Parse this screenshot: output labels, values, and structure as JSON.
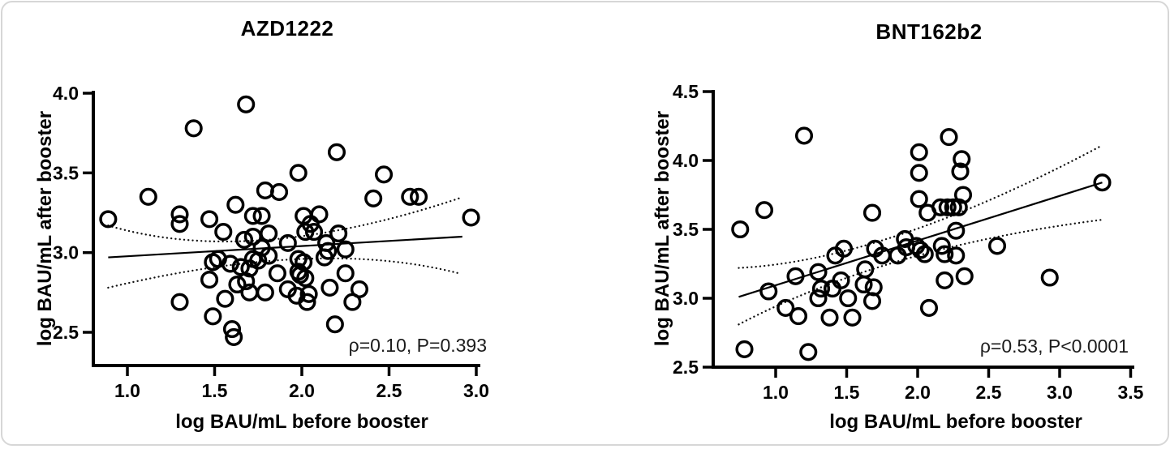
{
  "chart_data": [
    {
      "type": "scatter",
      "title": "AZD1222",
      "xlabel": "log BAU/mL before booster",
      "ylabel": "log BAU/mL after booster",
      "annotation": "ρ=0.10, P=0.393",
      "xticks": [
        1.0,
        1.5,
        2.0,
        2.5,
        3.0
      ],
      "yticks": [
        2.5,
        3.0,
        3.5,
        4.0
      ],
      "xlim": [
        0.8,
        3.02
      ],
      "ylim": [
        2.29,
        4.02
      ],
      "grid": false,
      "legend": "none",
      "marker": "open-circle",
      "marker_color": "#000000",
      "regression_line": {
        "x1": 0.89,
        "y1": 2.97,
        "x2": 2.92,
        "y2": 3.1
      },
      "ci_upper": [
        [
          0.89,
          3.17
        ],
        [
          1.8,
          3.08
        ],
        [
          2.9,
          3.34
        ]
      ],
      "ci_lower": [
        [
          0.89,
          2.78
        ],
        [
          2.0,
          2.96
        ],
        [
          2.9,
          2.87
        ]
      ],
      "points": [
        [
          1.68,
          3.93
        ],
        [
          1.38,
          3.78
        ],
        [
          2.2,
          3.63
        ],
        [
          1.98,
          3.5
        ],
        [
          2.47,
          3.49
        ],
        [
          1.79,
          3.39
        ],
        [
          1.87,
          3.38
        ],
        [
          1.12,
          3.35
        ],
        [
          2.41,
          3.34
        ],
        [
          2.62,
          3.35
        ],
        [
          2.67,
          3.35
        ],
        [
          1.62,
          3.3
        ],
        [
          1.3,
          3.24
        ],
        [
          1.3,
          3.18
        ],
        [
          1.47,
          3.21
        ],
        [
          1.72,
          3.23
        ],
        [
          1.77,
          3.23
        ],
        [
          2.01,
          3.23
        ],
        [
          2.1,
          3.24
        ],
        [
          2.05,
          3.18
        ],
        [
          0.89,
          3.21
        ],
        [
          2.97,
          3.22
        ],
        [
          2.21,
          3.12
        ],
        [
          2.02,
          3.13
        ],
        [
          2.07,
          3.13
        ],
        [
          1.55,
          3.13
        ],
        [
          1.67,
          3.08
        ],
        [
          1.72,
          3.1
        ],
        [
          1.81,
          3.12
        ],
        [
          1.77,
          3.03
        ],
        [
          1.92,
          3.06
        ],
        [
          2.14,
          3.06
        ],
        [
          2.15,
          3.01
        ],
        [
          2.25,
          3.02
        ],
        [
          1.81,
          2.98
        ],
        [
          1.49,
          2.94
        ],
        [
          1.52,
          2.96
        ],
        [
          1.59,
          2.93
        ],
        [
          1.72,
          2.96
        ],
        [
          1.75,
          2.95
        ],
        [
          1.65,
          2.91
        ],
        [
          1.7,
          2.9
        ],
        [
          2.13,
          2.97
        ],
        [
          1.98,
          2.96
        ],
        [
          2.01,
          2.94
        ],
        [
          1.98,
          2.88
        ],
        [
          1.99,
          2.86
        ],
        [
          2.02,
          2.84
        ],
        [
          2.25,
          2.87
        ],
        [
          1.86,
          2.87
        ],
        [
          1.47,
          2.83
        ],
        [
          1.63,
          2.8
        ],
        [
          1.68,
          2.82
        ],
        [
          1.7,
          2.75
        ],
        [
          1.79,
          2.75
        ],
        [
          1.92,
          2.77
        ],
        [
          1.97,
          2.73
        ],
        [
          2.16,
          2.78
        ],
        [
          2.33,
          2.77
        ],
        [
          1.56,
          2.71
        ],
        [
          1.3,
          2.69
        ],
        [
          2.04,
          2.74
        ],
        [
          2.03,
          2.69
        ],
        [
          2.29,
          2.69
        ],
        [
          2.19,
          2.55
        ],
        [
          1.49,
          2.6
        ],
        [
          1.6,
          2.52
        ],
        [
          1.61,
          2.47
        ]
      ]
    },
    {
      "type": "scatter",
      "title": "BNT162b2",
      "xlabel": "log BAU/mL before booster",
      "ylabel": "log BAU/mL after booster",
      "annotation": "ρ=0.53, P<0.0001",
      "xticks": [
        1.0,
        1.5,
        2.0,
        2.5,
        3.0,
        3.5
      ],
      "yticks": [
        2.5,
        3.0,
        3.5,
        4.0,
        4.5
      ],
      "xlim": [
        0.56,
        3.53
      ],
      "ylim": [
        2.5,
        4.51
      ],
      "grid": false,
      "legend": "none",
      "marker": "open-circle",
      "marker_color": "#000000",
      "regression_line": {
        "x1": 0.74,
        "y1": 3.01,
        "x2": 3.3,
        "y2": 3.84
      },
      "ci_upper": [
        [
          0.74,
          3.22
        ],
        [
          1.9,
          3.47
        ],
        [
          3.3,
          4.11
        ]
      ],
      "ci_lower": [
        [
          0.74,
          2.81
        ],
        [
          1.9,
          3.28
        ],
        [
          3.3,
          3.57
        ]
      ],
      "points": [
        [
          1.2,
          4.18
        ],
        [
          2.22,
          4.17
        ],
        [
          2.01,
          4.06
        ],
        [
          2.31,
          4.01
        ],
        [
          2.01,
          3.91
        ],
        [
          2.3,
          3.92
        ],
        [
          3.3,
          3.84
        ],
        [
          2.32,
          3.75
        ],
        [
          2.01,
          3.72
        ],
        [
          2.16,
          3.66
        ],
        [
          2.21,
          3.66
        ],
        [
          2.25,
          3.66
        ],
        [
          2.29,
          3.66
        ],
        [
          2.07,
          3.62
        ],
        [
          1.68,
          3.62
        ],
        [
          0.92,
          3.64
        ],
        [
          0.75,
          3.5
        ],
        [
          2.27,
          3.49
        ],
        [
          1.91,
          3.43
        ],
        [
          1.92,
          3.37
        ],
        [
          1.99,
          3.38
        ],
        [
          2.02,
          3.35
        ],
        [
          1.86,
          3.31
        ],
        [
          2.05,
          3.32
        ],
        [
          2.17,
          3.38
        ],
        [
          2.19,
          3.32
        ],
        [
          2.27,
          3.31
        ],
        [
          2.56,
          3.38
        ],
        [
          1.42,
          3.31
        ],
        [
          1.48,
          3.36
        ],
        [
          1.7,
          3.36
        ],
        [
          1.75,
          3.31
        ],
        [
          1.3,
          3.19
        ],
        [
          1.14,
          3.16
        ],
        [
          1.63,
          3.21
        ],
        [
          2.19,
          3.13
        ],
        [
          2.33,
          3.16
        ],
        [
          2.93,
          3.15
        ],
        [
          1.46,
          3.13
        ],
        [
          1.62,
          3.1
        ],
        [
          1.69,
          3.08
        ],
        [
          1.32,
          3.07
        ],
        [
          1.4,
          3.07
        ],
        [
          1.3,
          3.0
        ],
        [
          1.51,
          3.0
        ],
        [
          1.68,
          2.98
        ],
        [
          0.95,
          3.05
        ],
        [
          1.07,
          2.93
        ],
        [
          2.08,
          2.93
        ],
        [
          1.16,
          2.87
        ],
        [
          1.38,
          2.86
        ],
        [
          1.54,
          2.86
        ],
        [
          0.78,
          2.63
        ],
        [
          1.23,
          2.61
        ]
      ]
    }
  ]
}
